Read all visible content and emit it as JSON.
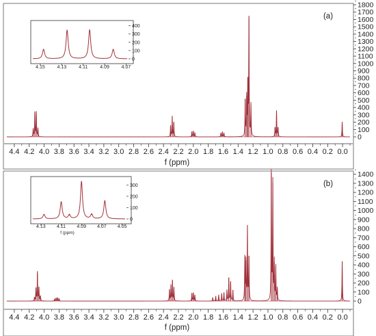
{
  "chart_data": [
    {
      "type": "line",
      "panel_label": "(a)",
      "xlabel": "f (ppm)",
      "x_ticks": [
        4.4,
        4.2,
        4.0,
        3.8,
        3.6,
        3.4,
        3.2,
        3.0,
        2.8,
        2.6,
        2.4,
        2.2,
        2.0,
        1.8,
        1.6,
        1.4,
        1.2,
        1.0,
        0.8,
        0.6,
        0.4,
        0.2,
        0.0
      ],
      "xlim": [
        4.5,
        -0.1
      ],
      "ylim": [
        -50,
        1800
      ],
      "y_ticks": [
        0,
        100,
        200,
        300,
        400,
        500,
        600,
        700,
        800,
        900,
        1000,
        1100,
        1200,
        1300,
        1400,
        1500,
        1600,
        1700,
        1800
      ],
      "series": [
        {
          "color": "#a0303a",
          "peaks": [
            {
              "x": 4.147,
              "y": 110
            },
            {
              "x": 4.125,
              "y": 345
            },
            {
              "x": 4.105,
              "y": 350
            },
            {
              "x": 4.083,
              "y": 115
            },
            {
              "x": 2.305,
              "y": 160
            },
            {
              "x": 2.283,
              "y": 280
            },
            {
              "x": 2.262,
              "y": 205
            },
            {
              "x": 2.02,
              "y": 75
            },
            {
              "x": 2.0,
              "y": 80
            },
            {
              "x": 1.98,
              "y": 60
            },
            {
              "x": 1.63,
              "y": 55
            },
            {
              "x": 1.61,
              "y": 70
            },
            {
              "x": 1.59,
              "y": 55
            },
            {
              "x": 1.305,
              "y": 520
            },
            {
              "x": 1.285,
              "y": 560
            },
            {
              "x": 1.27,
              "y": 800
            },
            {
              "x": 1.255,
              "y": 1650
            },
            {
              "x": 1.228,
              "y": 440
            },
            {
              "x": 0.905,
              "y": 130
            },
            {
              "x": 0.885,
              "y": 360
            },
            {
              "x": 0.865,
              "y": 130
            },
            {
              "x": 0.005,
              "y": 205
            }
          ]
        }
      ],
      "inset": {
        "xlabel": "",
        "x_ticks": [
          4.15,
          4.13,
          4.11,
          4.09,
          4.07
        ],
        "xlim": [
          4.157,
          4.069
        ],
        "y_ticks": [
          0,
          100,
          200,
          300,
          400
        ],
        "ylim": [
          -10,
          430
        ],
        "peaks": [
          {
            "x": 4.147,
            "y": 115
          },
          {
            "x": 4.125,
            "y": 345
          },
          {
            "x": 4.104,
            "y": 350
          },
          {
            "x": 4.082,
            "y": 115
          }
        ]
      }
    },
    {
      "type": "line",
      "panel_label": "(b)",
      "xlabel": "f (ppm)",
      "x_ticks": [
        4.4,
        4.2,
        4.0,
        3.8,
        3.6,
        3.4,
        3.2,
        3.0,
        2.8,
        2.6,
        2.4,
        2.2,
        2.0,
        1.8,
        1.6,
        1.4,
        1.2,
        1.0,
        0.8,
        0.6,
        0.4,
        0.2,
        0.0
      ],
      "xlim": [
        4.5,
        -0.1
      ],
      "ylim": [
        -50,
        1420
      ],
      "y_ticks": [
        0,
        100,
        200,
        300,
        400,
        500,
        600,
        700,
        800,
        900,
        1000,
        1100,
        1200,
        1300,
        1400
      ],
      "series": [
        {
          "color": "#a0303a",
          "peaks": [
            {
              "x": 4.13,
              "y": 40
            },
            {
              "x": 4.11,
              "y": 150
            },
            {
              "x": 4.09,
              "y": 330
            },
            {
              "x": 4.07,
              "y": 160
            },
            {
              "x": 4.05,
              "y": 60
            },
            {
              "x": 3.86,
              "y": 25
            },
            {
              "x": 3.84,
              "y": 35
            },
            {
              "x": 3.82,
              "y": 40
            },
            {
              "x": 3.8,
              "y": 30
            },
            {
              "x": 2.32,
              "y": 130
            },
            {
              "x": 2.3,
              "y": 180
            },
            {
              "x": 2.28,
              "y": 230
            },
            {
              "x": 2.26,
              "y": 150
            },
            {
              "x": 2.02,
              "y": 90
            },
            {
              "x": 2.0,
              "y": 95
            },
            {
              "x": 1.98,
              "y": 70
            },
            {
              "x": 1.74,
              "y": 40
            },
            {
              "x": 1.7,
              "y": 55
            },
            {
              "x": 1.66,
              "y": 70
            },
            {
              "x": 1.62,
              "y": 85
            },
            {
              "x": 1.59,
              "y": 95
            },
            {
              "x": 1.55,
              "y": 120
            },
            {
              "x": 1.525,
              "y": 260
            },
            {
              "x": 1.5,
              "y": 220
            },
            {
              "x": 1.47,
              "y": 120
            },
            {
              "x": 1.31,
              "y": 510
            },
            {
              "x": 1.295,
              "y": 450
            },
            {
              "x": 1.275,
              "y": 840
            },
            {
              "x": 1.255,
              "y": 500
            },
            {
              "x": 0.955,
              "y": 1420
            },
            {
              "x": 0.935,
              "y": 1310
            },
            {
              "x": 0.915,
              "y": 430
            },
            {
              "x": 0.895,
              "y": 380
            },
            {
              "x": 0.875,
              "y": 140
            },
            {
              "x": 0.005,
              "y": 440
            }
          ]
        }
      ],
      "inset": {
        "xlabel": "f (ppm)",
        "x_ticks": [
          4.13,
          4.11,
          4.09,
          4.07,
          4.05
        ],
        "xlim": [
          4.138,
          4.047
        ],
        "y_ticks": [
          0,
          100,
          200,
          300
        ],
        "ylim": [
          -10,
          350
        ],
        "peaks": [
          {
            "x": 4.127,
            "y": 40
          },
          {
            "x": 4.11,
            "y": 150
          },
          {
            "x": 4.102,
            "y": 35
          },
          {
            "x": 4.09,
            "y": 330
          },
          {
            "x": 4.08,
            "y": 40
          },
          {
            "x": 4.067,
            "y": 160
          }
        ]
      }
    }
  ]
}
